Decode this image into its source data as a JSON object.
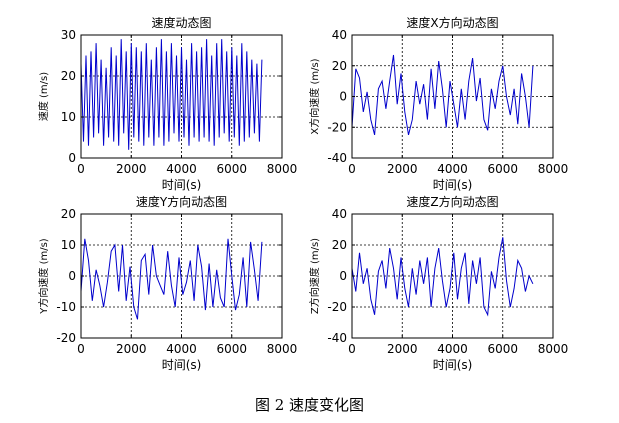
{
  "figure_caption": "图 2  速度变化图",
  "chart_data": [
    {
      "type": "line",
      "title": "速度动态图",
      "xlabel": "时间(s)",
      "ylabel": "速度 (m/s)",
      "xlim": [
        0,
        8000
      ],
      "ylim": [
        0,
        30
      ],
      "xticks": [
        0,
        2000,
        4000,
        6000,
        8000
      ],
      "yticks": [
        0,
        10,
        20,
        30
      ],
      "grid": true,
      "series": [
        {
          "color": "#0000cc",
          "x": [
            0,
            100,
            200,
            300,
            400,
            500,
            600,
            700,
            800,
            900,
            1000,
            1100,
            1200,
            1300,
            1400,
            1500,
            1600,
            1700,
            1800,
            1900,
            2000,
            2100,
            2200,
            2300,
            2400,
            2500,
            2600,
            2700,
            2800,
            2900,
            3000,
            3100,
            3200,
            3300,
            3400,
            3500,
            3600,
            3700,
            3800,
            3900,
            4000,
            4100,
            4200,
            4300,
            4400,
            4500,
            4600,
            4700,
            4800,
            4900,
            5000,
            5100,
            5200,
            5300,
            5400,
            5500,
            5600,
            5700,
            5800,
            5900,
            6000,
            6100,
            6200,
            6300,
            6400,
            6500,
            6600,
            6700,
            6800,
            6900,
            7000,
            7100,
            7200
          ],
          "y": [
            23,
            4,
            25,
            3,
            26,
            5,
            28,
            6,
            24,
            3,
            22,
            5,
            27,
            4,
            25,
            3,
            29,
            6,
            26,
            2,
            28,
            5,
            27,
            4,
            26,
            3,
            28,
            5,
            24,
            3,
            27,
            5,
            29,
            3,
            26,
            4,
            28,
            6,
            25,
            4,
            27,
            5,
            24,
            3,
            28,
            5,
            26,
            4,
            27,
            5,
            29,
            4,
            25,
            3,
            28,
            5,
            29,
            6,
            26,
            4,
            27,
            5,
            25,
            3,
            28,
            4,
            26,
            5,
            24,
            6,
            23,
            4,
            24
          ]
        }
      ]
    },
    {
      "type": "line",
      "title": "速度X方向动态图",
      "xlabel": "时间(s)",
      "ylabel": "X方向速度 (m/s)",
      "xlim": [
        0,
        8000
      ],
      "ylim": [
        -40,
        40
      ],
      "xticks": [
        0,
        2000,
        4000,
        6000,
        8000
      ],
      "yticks": [
        -40,
        -20,
        0,
        20,
        40
      ],
      "grid": true,
      "series": [
        {
          "color": "#0000cc",
          "x": [
            0,
            150,
            300,
            450,
            600,
            750,
            900,
            1050,
            1200,
            1350,
            1500,
            1650,
            1800,
            1950,
            2100,
            2250,
            2400,
            2550,
            2700,
            2850,
            3000,
            3150,
            3300,
            3450,
            3600,
            3750,
            3900,
            4050,
            4200,
            4350,
            4500,
            4650,
            4800,
            4950,
            5100,
            5250,
            5400,
            5550,
            5700,
            5850,
            6000,
            6150,
            6300,
            6450,
            6600,
            6750,
            6900,
            7050,
            7200
          ],
          "y": [
            -20,
            18,
            12,
            -10,
            3,
            -15,
            -25,
            5,
            10,
            -8,
            10,
            27,
            -5,
            15,
            -10,
            -25,
            -15,
            10,
            -5,
            8,
            -15,
            18,
            -8,
            23,
            5,
            -20,
            10,
            -5,
            -20,
            5,
            -15,
            10,
            25,
            -3,
            12,
            -15,
            -22,
            5,
            -8,
            10,
            20,
            0,
            -12,
            5,
            -18,
            15,
            0,
            -20,
            20
          ]
        }
      ]
    },
    {
      "type": "line",
      "title": "速度Y方向动态图",
      "xlabel": "时间(s)",
      "ylabel": "Y方向速度 (m/s)",
      "xlim": [
        0,
        8000
      ],
      "ylim": [
        -20,
        20
      ],
      "xticks": [
        0,
        2000,
        4000,
        6000,
        8000
      ],
      "yticks": [
        -20,
        -10,
        0,
        10,
        20
      ],
      "grid": true,
      "series": [
        {
          "color": "#0000cc",
          "x": [
            0,
            150,
            300,
            450,
            600,
            750,
            900,
            1050,
            1200,
            1350,
            1500,
            1650,
            1800,
            1950,
            2100,
            2250,
            2400,
            2550,
            2700,
            2850,
            3000,
            3150,
            3300,
            3450,
            3600,
            3750,
            3900,
            4050,
            4200,
            4350,
            4500,
            4650,
            4800,
            4950,
            5100,
            5250,
            5400,
            5550,
            5700,
            5850,
            6000,
            6150,
            6300,
            6450,
            6600,
            6750,
            6900,
            7050,
            7200
          ],
          "y": [
            -5,
            12,
            5,
            -8,
            2,
            -3,
            -10,
            -2,
            8,
            10,
            -5,
            10,
            -8,
            3,
            -10,
            -14,
            5,
            7,
            -6,
            10,
            0,
            -3,
            -6,
            8,
            -3,
            -10,
            6,
            -6,
            -2,
            5,
            -8,
            10,
            3,
            -11,
            4,
            -10,
            2,
            -7,
            -10,
            12,
            0,
            -11,
            -6,
            6,
            -10,
            11,
            2,
            -8,
            11
          ]
        }
      ]
    },
    {
      "type": "line",
      "title": "速度Z方向动态图",
      "xlabel": "时间(s)",
      "ylabel": "Z方向速度 (m/s)",
      "xlim": [
        0,
        8000
      ],
      "ylim": [
        -40,
        40
      ],
      "xticks": [
        0,
        2000,
        4000,
        6000,
        8000
      ],
      "yticks": [
        -40,
        -20,
        0,
        20,
        40
      ],
      "grid": true,
      "series": [
        {
          "color": "#0000cc",
          "x": [
            0,
            150,
            300,
            450,
            600,
            750,
            900,
            1050,
            1200,
            1350,
            1500,
            1650,
            1800,
            1950,
            2100,
            2250,
            2400,
            2550,
            2700,
            2850,
            3000,
            3150,
            3300,
            3450,
            3600,
            3750,
            3900,
            4050,
            4200,
            4350,
            4500,
            4650,
            4800,
            4950,
            5100,
            5250,
            5400,
            5550,
            5700,
            5850,
            6000,
            6150,
            6300,
            6450,
            6600,
            6750,
            6900,
            7050,
            7200
          ],
          "y": [
            5,
            -10,
            15,
            -5,
            5,
            -15,
            -25,
            3,
            10,
            -8,
            18,
            5,
            -15,
            12,
            -8,
            -20,
            5,
            -12,
            10,
            -5,
            12,
            -20,
            5,
            18,
            -3,
            -20,
            -8,
            15,
            -15,
            5,
            15,
            -18,
            10,
            -5,
            12,
            -20,
            -25,
            3,
            -8,
            12,
            25,
            -3,
            -20,
            -8,
            10,
            5,
            -10,
            0,
            -5
          ]
        }
      ]
    }
  ]
}
